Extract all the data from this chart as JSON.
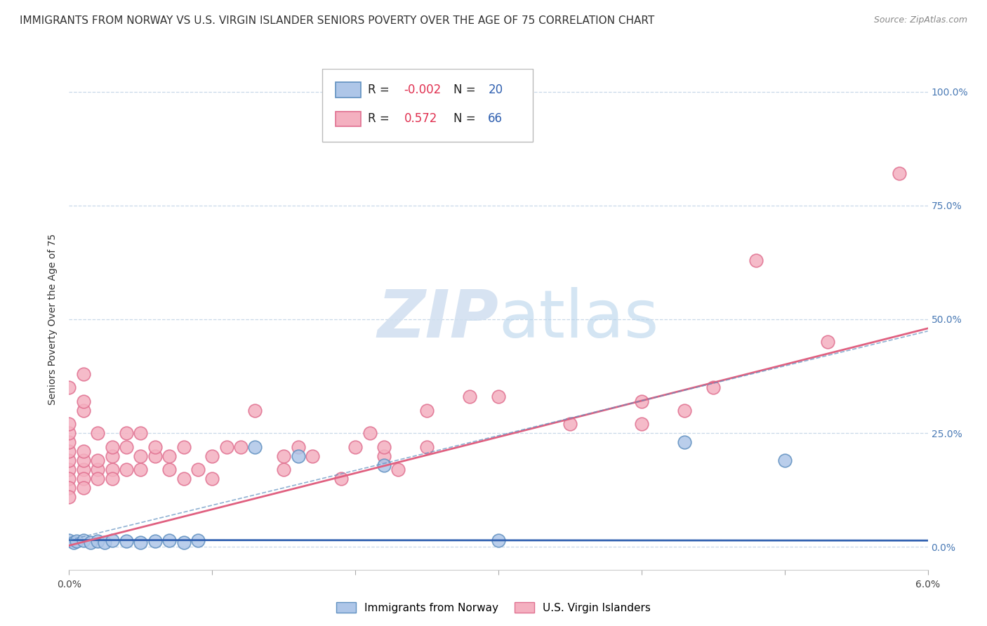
{
  "title": "IMMIGRANTS FROM NORWAY VS U.S. VIRGIN ISLANDER SENIORS POVERTY OVER THE AGE OF 75 CORRELATION CHART",
  "source": "Source: ZipAtlas.com",
  "ylabel": "Seniors Poverty Over the Age of 75",
  "ylabel_right_ticks": [
    "100.0%",
    "75.0%",
    "50.0%",
    "25.0%",
    "0.0%"
  ],
  "ylabel_right_vals": [
    1.0,
    0.75,
    0.5,
    0.25,
    0.0
  ],
  "color_norway": "#aec6e8",
  "color_virgin": "#f4b0c0",
  "color_norway_border": "#6090c0",
  "color_virgin_border": "#e07090",
  "color_norway_line": "#3060b0",
  "color_virgin_line": "#e06080",
  "watermark_color": "#d0dff0",
  "grid_color": "#c8d8e8",
  "xlim": [
    0.0,
    0.06
  ],
  "ylim": [
    -0.05,
    1.05
  ],
  "background_color": "#ffffff",
  "norway_x": [
    0.0,
    0.0003,
    0.0005,
    0.001,
    0.0015,
    0.002,
    0.0025,
    0.003,
    0.004,
    0.005,
    0.006,
    0.007,
    0.008,
    0.009,
    0.013,
    0.016,
    0.022,
    0.03,
    0.043,
    0.05
  ],
  "norway_y": [
    0.015,
    0.01,
    0.012,
    0.015,
    0.01,
    0.012,
    0.01,
    0.015,
    0.012,
    0.01,
    0.012,
    0.015,
    0.01,
    0.015,
    0.22,
    0.2,
    0.18,
    0.015,
    0.23,
    0.19
  ],
  "virgin_x": [
    0.0,
    0.0,
    0.0,
    0.0,
    0.0,
    0.0,
    0.0,
    0.0,
    0.0,
    0.0,
    0.001,
    0.001,
    0.001,
    0.001,
    0.001,
    0.001,
    0.001,
    0.001,
    0.002,
    0.002,
    0.002,
    0.002,
    0.003,
    0.003,
    0.003,
    0.003,
    0.004,
    0.004,
    0.004,
    0.005,
    0.005,
    0.005,
    0.006,
    0.006,
    0.007,
    0.007,
    0.008,
    0.008,
    0.009,
    0.01,
    0.01,
    0.011,
    0.012,
    0.013,
    0.015,
    0.015,
    0.016,
    0.017,
    0.019,
    0.02,
    0.021,
    0.022,
    0.022,
    0.023,
    0.025,
    0.025,
    0.028,
    0.03,
    0.035,
    0.04,
    0.04,
    0.043,
    0.045,
    0.048,
    0.053,
    0.058
  ],
  "virgin_y": [
    0.17,
    0.19,
    0.21,
    0.23,
    0.15,
    0.13,
    0.11,
    0.25,
    0.27,
    0.35,
    0.38,
    0.17,
    0.19,
    0.21,
    0.15,
    0.13,
    0.3,
    0.32,
    0.17,
    0.19,
    0.25,
    0.15,
    0.2,
    0.22,
    0.17,
    0.15,
    0.25,
    0.22,
    0.17,
    0.25,
    0.2,
    0.17,
    0.2,
    0.22,
    0.17,
    0.2,
    0.15,
    0.22,
    0.17,
    0.2,
    0.15,
    0.22,
    0.22,
    0.3,
    0.2,
    0.17,
    0.22,
    0.2,
    0.15,
    0.22,
    0.25,
    0.2,
    0.22,
    0.17,
    0.3,
    0.22,
    0.33,
    0.33,
    0.27,
    0.27,
    0.32,
    0.3,
    0.35,
    0.63,
    0.45,
    0.82
  ],
  "norway_line_y0": 0.015,
  "norway_line_y1": 0.014,
  "virgin_line_y0": 0.003,
  "virgin_line_y1": 0.48,
  "title_fontsize": 11,
  "axis_fontsize": 10,
  "legend_r1_color": "#e03050",
  "legend_n1_color": "#3060b0",
  "legend_r2_color": "#e03050",
  "legend_n2_color": "#3060b0"
}
